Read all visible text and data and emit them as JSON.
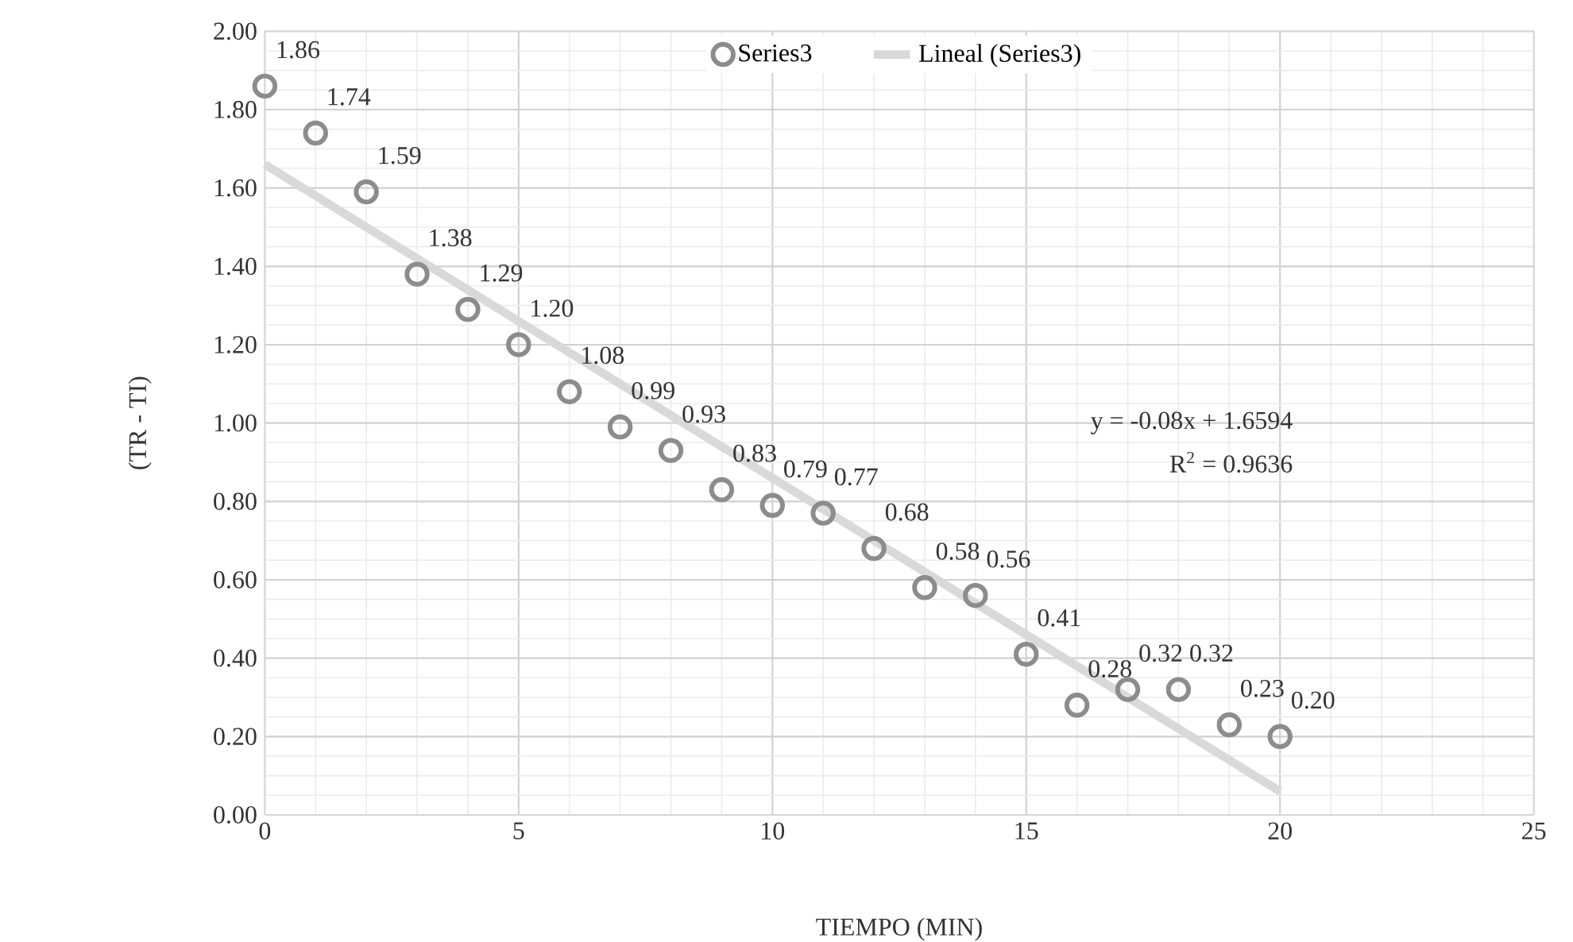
{
  "chart_data": {
    "type": "scatter",
    "xlabel": "TIEMPO (MIN)",
    "ylabel": "(TR - TI)",
    "x": [
      0,
      1,
      2,
      3,
      4,
      5,
      6,
      7,
      8,
      9,
      10,
      11,
      12,
      13,
      14,
      15,
      16,
      17,
      18,
      19,
      20
    ],
    "series": [
      {
        "name": "Lineal (Series3)",
        "type": "line",
        "color": "#d9d9d9",
        "line_style": "solid",
        "marker": "none",
        "x": [
          0,
          20
        ],
        "values": [
          1.66,
          0.06
        ]
      },
      {
        "name": "Series3",
        "color": "#8c8c8c",
        "marker": "circle",
        "values": [
          1.86,
          1.74,
          1.59,
          1.38,
          1.29,
          1.2,
          1.08,
          0.99,
          0.93,
          0.83,
          0.79,
          0.77,
          0.68,
          0.58,
          0.56,
          0.41,
          0.28,
          0.32,
          0.32,
          0.23,
          0.2
        ],
        "value_labels": [
          "1.86",
          "1.74",
          "1.59",
          "1.38",
          "1.29",
          "1.20",
          "1.08",
          "0.99",
          "0.93",
          "0.83",
          "0.79",
          "0.77",
          "0.68",
          "0.58",
          "0.56",
          "0.41",
          "0.28",
          "0.32",
          "0.32",
          "0.23",
          "0.20"
        ]
      }
    ],
    "annotations": [
      "y = -0.08x + 1.6594",
      "R$^{2}$ = 0.9636"
    ],
    "xlim": [
      0,
      25
    ],
    "xticks": [
      0,
      5,
      10,
      15,
      20,
      25
    ],
    "ylim": [
      0,
      2
    ],
    "yticks": [
      {
        "value": 0,
        "label": "0.00"
      },
      {
        "value": 0.2,
        "label": "0.20"
      },
      {
        "value": 0.4,
        "label": "0.40"
      },
      {
        "value": 0.6,
        "label": "0.60"
      },
      {
        "value": 0.8,
        "label": "0.80"
      },
      {
        "value": 1.0,
        "label": "1.00"
      },
      {
        "value": 1.2,
        "label": "1.20"
      },
      {
        "value": 1.4,
        "label": "1.40"
      },
      {
        "value": 1.6,
        "label": "1.60"
      },
      {
        "value": 1.8,
        "label": "1.80"
      },
      {
        "value": 2.0,
        "label": "2.00"
      }
    ],
    "grid": true,
    "legend": "top"
  }
}
